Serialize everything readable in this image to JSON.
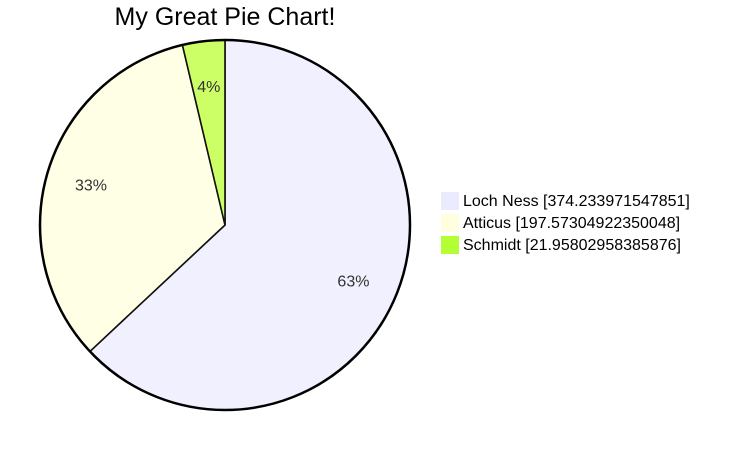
{
  "chart_data": {
    "type": "pie",
    "title": "My Great Pie Chart!",
    "slices": [
      {
        "label": "Loch Ness",
        "value": 374.233971547851,
        "percent_label": "63%",
        "color": "#f0f0ff"
      },
      {
        "label": "Atticus",
        "value": 197.57304922350048,
        "percent_label": "33%",
        "color": "#ffffe6"
      },
      {
        "label": "Schmidt",
        "value": 21.95802958385876,
        "percent_label": "4%",
        "color": "#ccff66"
      }
    ],
    "legend": {
      "placement": "right",
      "entries": [
        {
          "text": "Loch Ness [374.233971547851]",
          "color": "#ebebff"
        },
        {
          "text": "Atticus [197.57304922350048]",
          "color": "#ffffe0"
        },
        {
          "text": "Schmidt [21.95802958385876]",
          "color": "#b3ff33"
        }
      ]
    }
  }
}
